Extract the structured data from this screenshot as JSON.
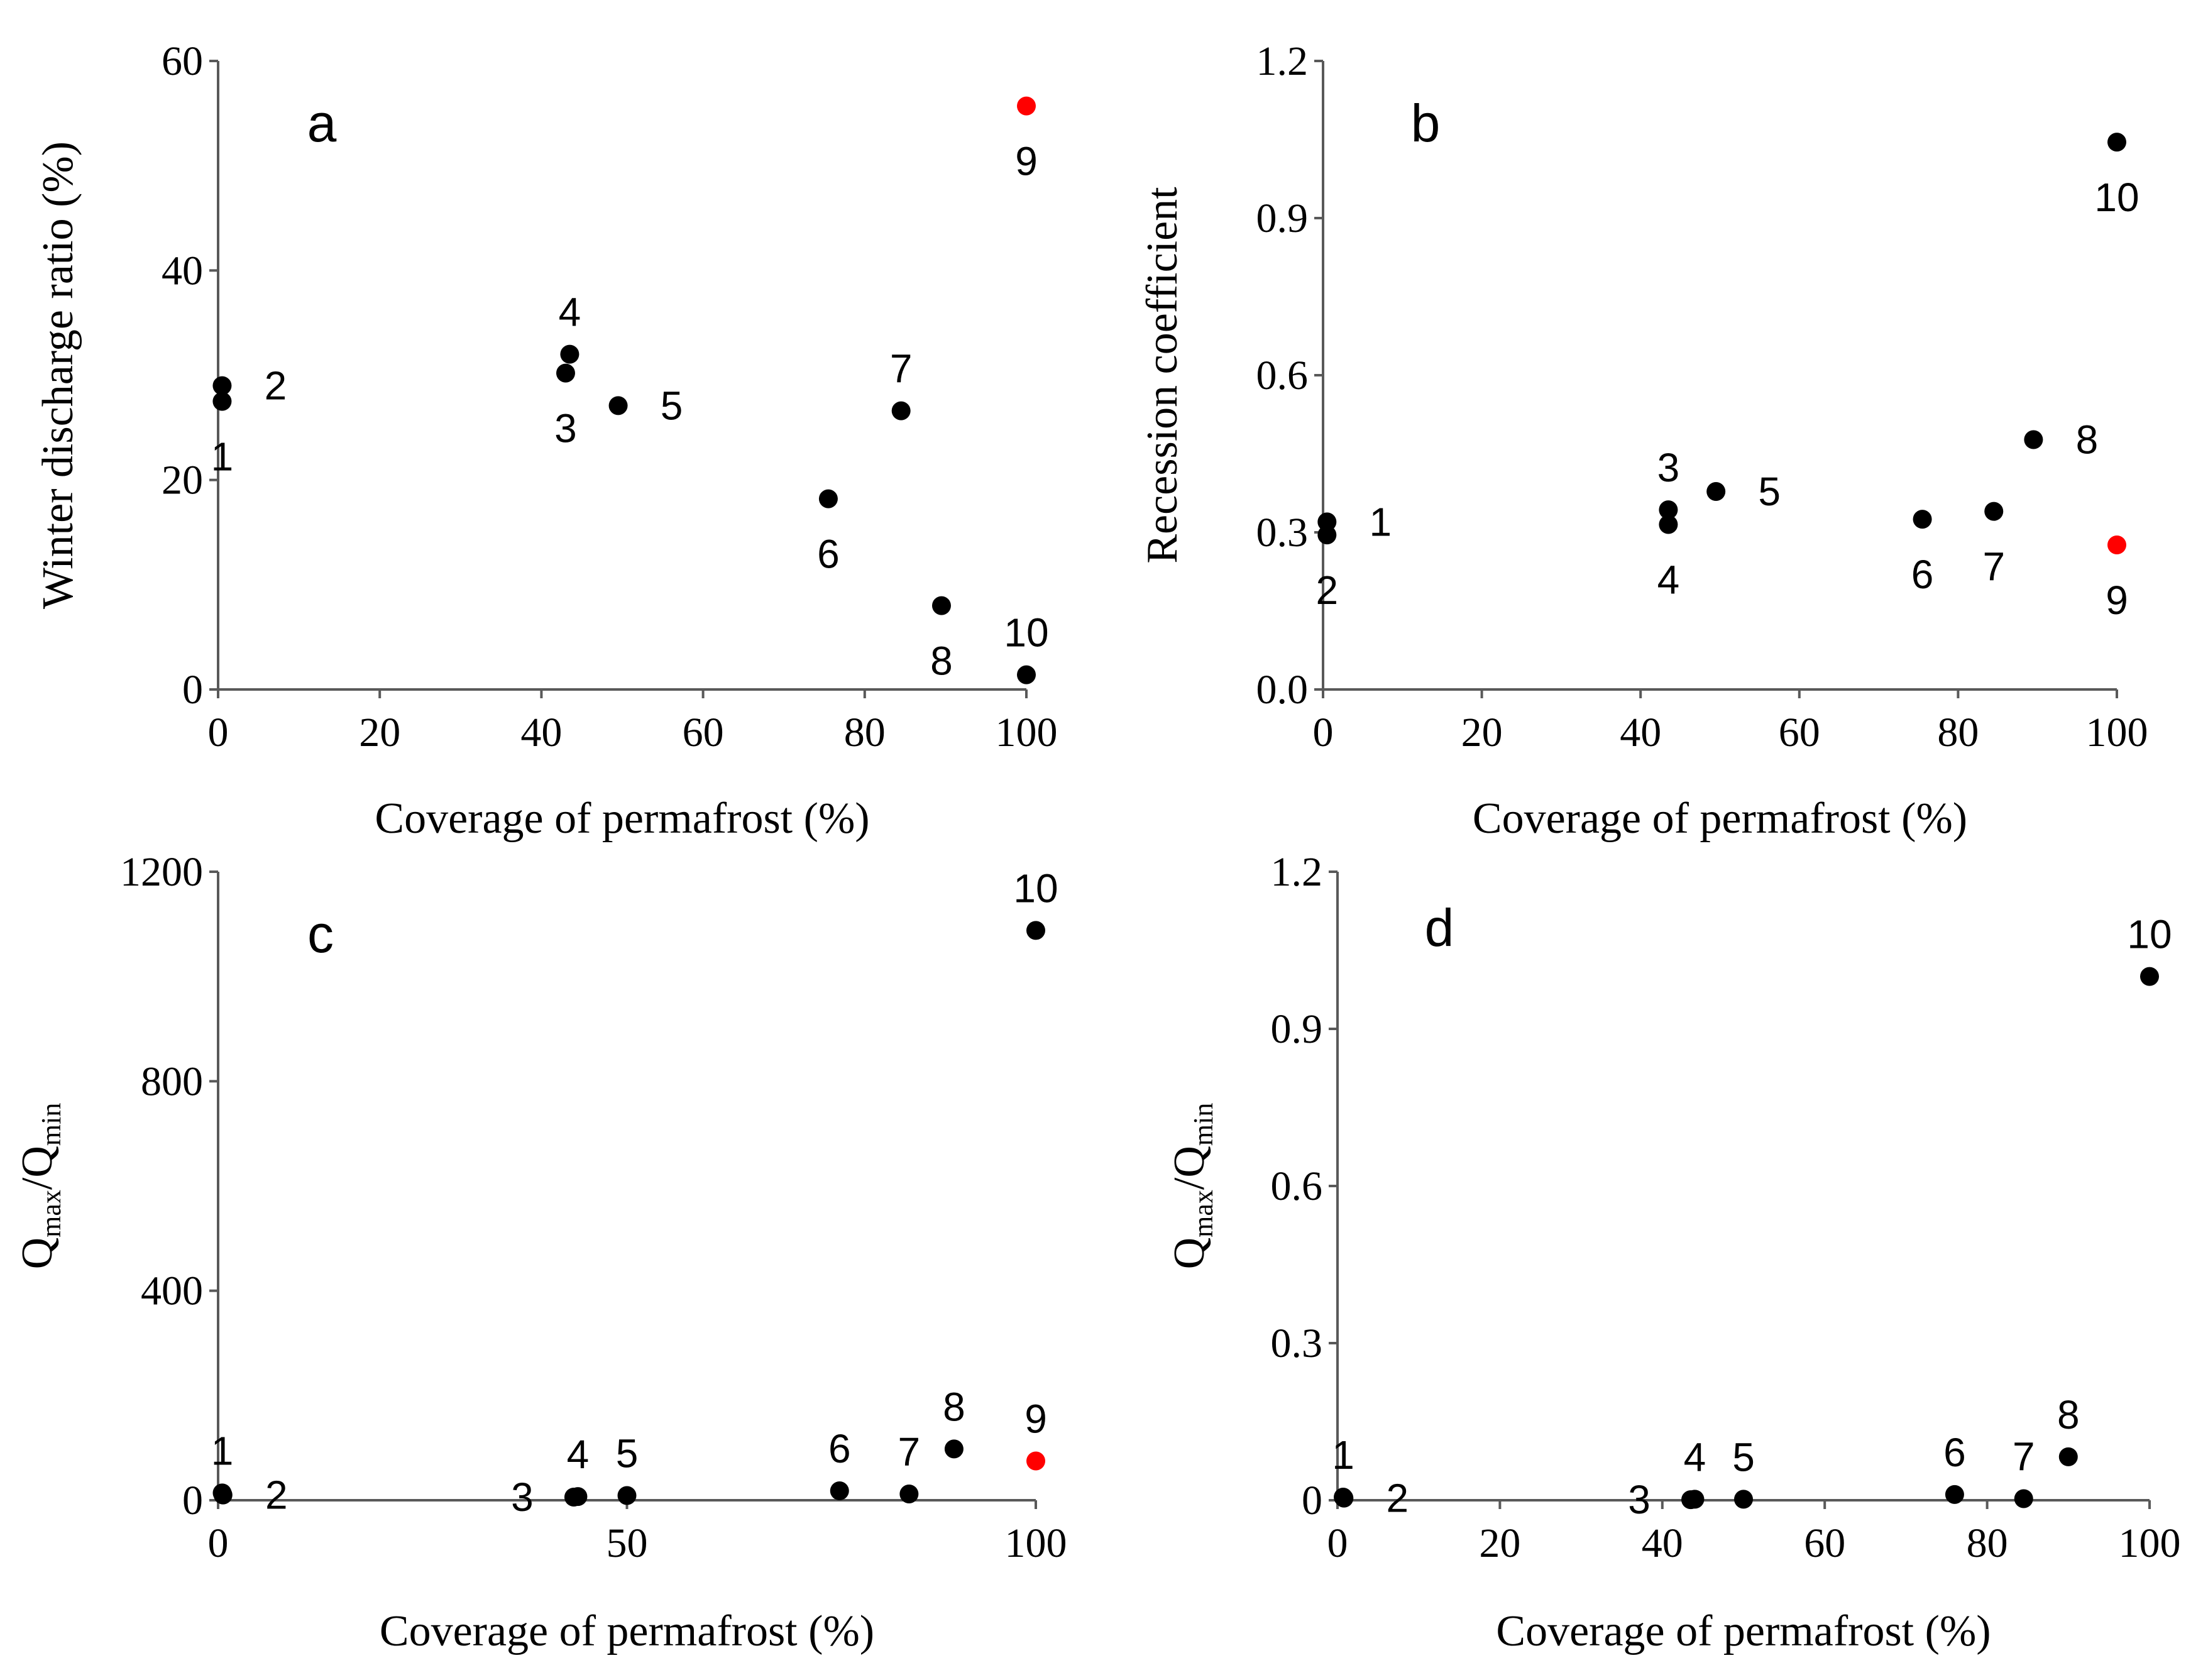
{
  "colors": {
    "normal": "#000000",
    "highlight": "#ff0000",
    "axis": "#595959"
  },
  "chart_data": [
    {
      "panel": "a",
      "type": "scatter",
      "title": "",
      "xlabel": "Coverage of permafrost (%)",
      "ylabel": "Winter discharge ratio (%)",
      "xlim": [
        0,
        100
      ],
      "ylim": [
        0,
        60
      ],
      "xticks": [
        0,
        20,
        40,
        60,
        80,
        100
      ],
      "yticks": [
        0,
        20,
        40,
        60
      ],
      "grid": false,
      "points": [
        {
          "label": "1",
          "x": 0.5,
          "y": 27.5,
          "label_pos": "below",
          "highlight": false
        },
        {
          "label": "2",
          "x": 0.5,
          "y": 29,
          "label_pos": "right",
          "highlight": false
        },
        {
          "label": "3",
          "x": 43,
          "y": 30.2,
          "label_pos": "below",
          "highlight": false
        },
        {
          "label": "4",
          "x": 43.5,
          "y": 32,
          "label_pos": "above",
          "highlight": false
        },
        {
          "label": "5",
          "x": 49.5,
          "y": 27.1,
          "label_pos": "right",
          "highlight": false
        },
        {
          "label": "6",
          "x": 75.5,
          "y": 18.2,
          "label_pos": "below",
          "highlight": false
        },
        {
          "label": "7",
          "x": 84.5,
          "y": 26.6,
          "label_pos": "above",
          "highlight": false
        },
        {
          "label": "8",
          "x": 89.5,
          "y": 8,
          "label_pos": "below",
          "highlight": false
        },
        {
          "label": "9",
          "x": 100,
          "y": 55.7,
          "label_pos": "below",
          "highlight": true
        },
        {
          "label": "10",
          "x": 100,
          "y": 1.4,
          "label_pos": "above",
          "highlight": false
        }
      ]
    },
    {
      "panel": "b",
      "type": "scatter",
      "title": "",
      "xlabel": "Coverage of permafrost (%)",
      "ylabel": "Recession coefficient",
      "xlim": [
        0,
        100
      ],
      "ylim": [
        0,
        1.2
      ],
      "xticks": [
        0,
        20,
        40,
        60,
        80,
        100
      ],
      "yticks": [
        0,
        0.3,
        0.6,
        0.9,
        1.2
      ],
      "grid": false,
      "points": [
        {
          "label": "1",
          "x": 0.5,
          "y": 0.32,
          "label_pos": "right",
          "highlight": false
        },
        {
          "label": "2",
          "x": 0.5,
          "y": 0.295,
          "label_pos": "below",
          "highlight": false
        },
        {
          "label": "3",
          "x": 43.5,
          "y": 0.343,
          "label_pos": "above",
          "highlight": false
        },
        {
          "label": "4",
          "x": 43.5,
          "y": 0.315,
          "label_pos": "below",
          "highlight": false
        },
        {
          "label": "5",
          "x": 49.5,
          "y": 0.378,
          "label_pos": "right",
          "highlight": false
        },
        {
          "label": "6",
          "x": 75.5,
          "y": 0.325,
          "label_pos": "below",
          "highlight": false
        },
        {
          "label": "7",
          "x": 84.5,
          "y": 0.34,
          "label_pos": "below",
          "highlight": false
        },
        {
          "label": "8",
          "x": 89.5,
          "y": 0.477,
          "label_pos": "right",
          "highlight": false
        },
        {
          "label": "9",
          "x": 100,
          "y": 0.276,
          "label_pos": "below",
          "highlight": true
        },
        {
          "label": "10",
          "x": 100,
          "y": 1.045,
          "label_pos": "below",
          "highlight": false
        }
      ]
    },
    {
      "panel": "c",
      "type": "scatter",
      "title": "",
      "xlabel": "Coverage of permafrost (%)",
      "ylabel_main": "Q",
      "ylabel_sub1": "max",
      "ylabel_mid": "/Q",
      "ylabel_sub2": "min",
      "xlim": [
        0,
        100
      ],
      "ylim": [
        0,
        1200
      ],
      "xticks": [
        0,
        50,
        100
      ],
      "yticks": [
        0,
        400,
        800,
        1200
      ],
      "grid": false,
      "points": [
        {
          "label": "1",
          "x": 0.5,
          "y": 14,
          "label_pos": "above",
          "highlight": false
        },
        {
          "label": "2",
          "x": 0.6,
          "y": 10,
          "label_pos": "right",
          "highlight": false
        },
        {
          "label": "3",
          "x": 43.5,
          "y": 6,
          "label_pos": "left",
          "highlight": false
        },
        {
          "label": "4",
          "x": 44,
          "y": 7,
          "label_pos": "above",
          "highlight": false
        },
        {
          "label": "5",
          "x": 50,
          "y": 9,
          "label_pos": "above",
          "highlight": false
        },
        {
          "label": "6",
          "x": 76,
          "y": 18,
          "label_pos": "above",
          "highlight": false
        },
        {
          "label": "7",
          "x": 84.5,
          "y": 12,
          "label_pos": "above",
          "highlight": false
        },
        {
          "label": "8",
          "x": 90,
          "y": 98,
          "label_pos": "above",
          "highlight": false
        },
        {
          "label": "9",
          "x": 100,
          "y": 75,
          "label_pos": "above",
          "highlight": true
        },
        {
          "label": "10",
          "x": 100,
          "y": 1088,
          "label_pos": "above",
          "highlight": false
        }
      ]
    },
    {
      "panel": "d",
      "type": "scatter",
      "title": "",
      "xlabel": "Coverage of permafrost (%)",
      "ylabel_main": "Q",
      "ylabel_sub1": "max",
      "ylabel_mid": "/Q",
      "ylabel_sub2": "min",
      "xlim": [
        0,
        100
      ],
      "ylim": [
        0,
        1.2
      ],
      "xticks": [
        0,
        20,
        40,
        60,
        80,
        100
      ],
      "yticks": [
        0,
        0.3,
        0.6,
        0.9,
        1.2
      ],
      "ytick_labels": [
        "0",
        "0.3",
        "0.6",
        "0.9",
        "1.2"
      ],
      "grid": false,
      "points": [
        {
          "label": "1",
          "x": 0.7,
          "y": 0.006,
          "label_pos": "above",
          "highlight": false
        },
        {
          "label": "2",
          "x": 0.8,
          "y": 0.004,
          "label_pos": "right",
          "highlight": false
        },
        {
          "label": "3",
          "x": 43.5,
          "y": 0.001,
          "label_pos": "left",
          "highlight": false
        },
        {
          "label": "4",
          "x": 44,
          "y": 0.002,
          "label_pos": "above",
          "highlight": false
        },
        {
          "label": "5",
          "x": 50,
          "y": 0.002,
          "label_pos": "above",
          "highlight": false
        },
        {
          "label": "6",
          "x": 76,
          "y": 0.011,
          "label_pos": "above",
          "highlight": false
        },
        {
          "label": "7",
          "x": 84.5,
          "y": 0.003,
          "label_pos": "above",
          "highlight": false
        },
        {
          "label": "8",
          "x": 90,
          "y": 0.083,
          "label_pos": "above",
          "highlight": false
        },
        {
          "label": "10",
          "x": 100,
          "y": 1.0,
          "label_pos": "above",
          "highlight": false
        }
      ]
    }
  ]
}
